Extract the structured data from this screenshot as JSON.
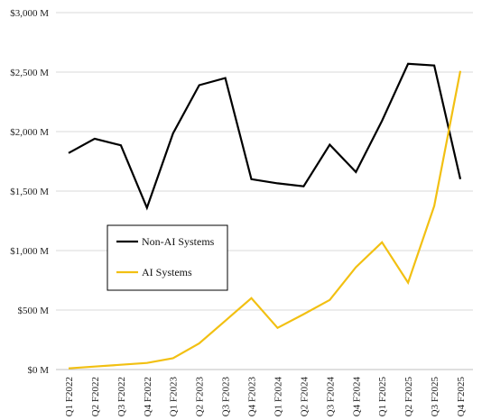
{
  "chart_data": {
    "type": "line",
    "categories": [
      "Q1 F2022",
      "Q2 F2022",
      "Q3 F2022",
      "Q4 F2022",
      "Q1 F2023",
      "Q2 F2023",
      "Q3 F2023",
      "Q4 F2023",
      "Q1 F2024",
      "Q2 F2024",
      "Q3 F2024",
      "Q4 F2024",
      "Q1 F2025",
      "Q2 F2025",
      "Q3 F2025",
      "Q4 F2025"
    ],
    "series": [
      {
        "name": "Non-AI Systems",
        "color": "#000000",
        "values": [
          1820,
          1940,
          1885,
          1360,
          1985,
          2390,
          2450,
          1600,
          1565,
          1540,
          1890,
          1660,
          2090,
          2570,
          2555,
          1600
        ]
      },
      {
        "name": "AI Systems",
        "color": "#F2C012",
        "values": [
          10,
          25,
          40,
          55,
          95,
          220,
          410,
          600,
          350,
          465,
          585,
          860,
          1070,
          730,
          1375,
          2510
        ]
      }
    ],
    "ylim": [
      0,
      3000
    ],
    "yticks": [
      0,
      500,
      1000,
      1500,
      2000,
      2500,
      3000
    ],
    "ytick_labels": [
      "$0 M",
      "$500 M",
      "$1,000 M",
      "$1,500 M",
      "$2,000 M",
      "$2,500 M",
      "$3,000 M"
    ],
    "grid": true,
    "legend_placement": "center-left",
    "title": "",
    "xlabel": "",
    "ylabel": ""
  }
}
